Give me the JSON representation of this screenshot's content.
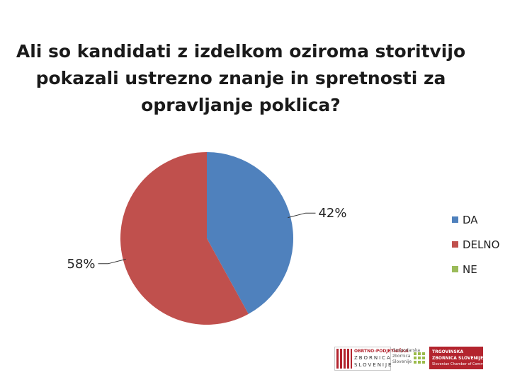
{
  "chart_data": {
    "type": "pie",
    "title": "Ali so kandidati z izdelkom oziroma storitvijo pokazali ustrezno znanje in spretnosti za opravljanje poklica?",
    "categories": [
      "DA",
      "DELNO",
      "NE"
    ],
    "values": [
      42,
      58,
      0
    ],
    "data_labels": [
      "42%",
      "58%",
      ""
    ],
    "colors": [
      "#4f81bd",
      "#c0504d",
      "#9bbb59"
    ],
    "legend_position": "right"
  },
  "logos": {
    "ozs": {
      "line1": "OBRTNO-PODJETNIŠKA",
      "line2": "ZBORNICA",
      "line3": "SLOVENIJE"
    },
    "gzs": {
      "text": "Gospodarska\nzbornica\nSlovenije"
    },
    "tzs": {
      "line1": "TRGOVINSKA",
      "line2": "ZBORNICA SLOVENIJE",
      "line3": "Slovenian Chamber of Commerce"
    }
  }
}
